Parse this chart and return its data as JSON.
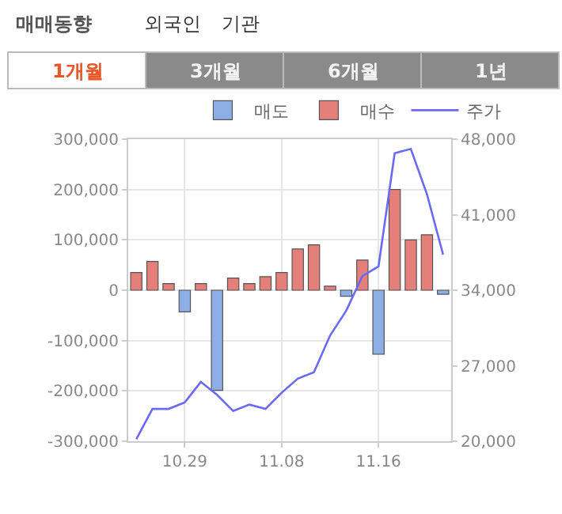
{
  "chart_data": {
    "type": "bar",
    "title": "매매동향",
    "annotations": [
      "외국인",
      "기관",
      "1개월",
      "3개월",
      "6개월",
      "1년"
    ],
    "categories": [
      null,
      null,
      null,
      "10.29",
      null,
      null,
      null,
      null,
      null,
      "11.08",
      null,
      null,
      null,
      null,
      null,
      "11.16",
      null,
      null,
      null,
      null
    ],
    "series": [
      {
        "name": "매도",
        "color": "#8eaee6",
        "values": [
          null,
          null,
          null,
          -43000,
          null,
          -199000,
          null,
          null,
          null,
          null,
          null,
          null,
          null,
          -12000,
          null,
          -127000,
          null,
          null,
          null,
          -8000
        ]
      },
      {
        "name": "매수",
        "color": "#e57f7a",
        "values": [
          35000,
          57000,
          13000,
          null,
          13000,
          null,
          24000,
          13000,
          27000,
          35000,
          82000,
          90000,
          8000,
          null,
          60000,
          null,
          200000,
          100000,
          110000,
          null
        ]
      },
      {
        "name": "주가",
        "type": "line",
        "axis": "y2",
        "color": "#6a6af5",
        "values": [
          20200,
          23000,
          23000,
          23600,
          25500,
          24300,
          22800,
          23400,
          23000,
          24500,
          25800,
          26400,
          29800,
          32100,
          35300,
          36200,
          46700,
          47100,
          42900,
          37300
        ]
      }
    ],
    "ylim": [
      -300000,
      300000
    ],
    "yticks": [
      {
        "value": -300000,
        "label": "-300,000"
      },
      {
        "value": -200000,
        "label": "-200,000"
      },
      {
        "value": -100000,
        "label": "-100,000"
      },
      0,
      {
        "value": 100000,
        "label": "100,000"
      },
      {
        "value": 200000,
        "label": "200,000"
      },
      {
        "value": 300000,
        "label": "300,000"
      }
    ],
    "y2lim": [
      20000,
      48000
    ],
    "y2ticks": [
      {
        "value": 20000,
        "label": "20,000"
      },
      {
        "value": 27000,
        "label": "27,000"
      },
      {
        "value": 34000,
        "label": "34,000"
      },
      {
        "value": 41000,
        "label": "41,000"
      },
      {
        "value": 48000,
        "label": "48,000"
      }
    ],
    "grid": true,
    "legend": "top right",
    "marker": "none",
    "line_style": "solid"
  }
}
